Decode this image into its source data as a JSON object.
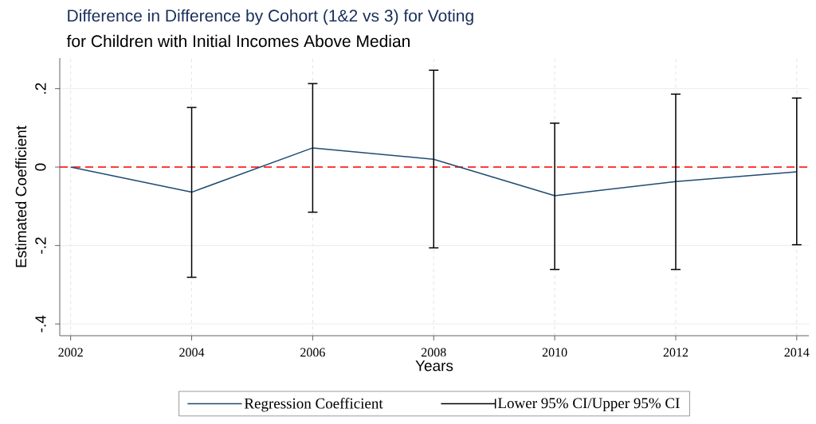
{
  "chart_data": {
    "type": "line",
    "title": "Difference in Difference by Cohort (1&2 vs 3) for Voting",
    "subtitle": "for Children with Initial Incomes Above Median",
    "xlabel": "Years",
    "ylabel": "Estimated Coefficient",
    "x": [
      2002,
      2004,
      2006,
      2008,
      2010,
      2012,
      2014
    ],
    "xlim": [
      2001.82,
      2014.2
    ],
    "xticks": [
      2002,
      2004,
      2006,
      2008,
      2010,
      2012,
      2014
    ],
    "ylim": [
      -0.43,
      0.278
    ],
    "yticks": [
      {
        "value": -0.4,
        "label": "-.4"
      },
      {
        "value": -0.2,
        "label": "-.2"
      },
      {
        "value": 0,
        "label": "0"
      },
      {
        "value": 0.2,
        "label": ".2"
      }
    ],
    "series": [
      {
        "name": "Regression Coefficient",
        "type": "line",
        "color": "#1f4a73",
        "values": [
          0,
          -0.064,
          0.049,
          0.02,
          -0.073,
          -0.037,
          -0.012
        ],
        "errors": [
          null,
          [
            -0.281,
            0.152
          ],
          [
            -0.115,
            0.213
          ],
          [
            -0.206,
            0.247
          ],
          [
            -0.261,
            0.112
          ],
          [
            -0.261,
            0.186
          ],
          [
            -0.198,
            0.176
          ]
        ]
      }
    ],
    "annotations": [
      "Lower 95% CI/Upper 95% CI"
    ],
    "ref_lines": [
      {
        "axis": "y",
        "value": 0,
        "color": "#ff0000",
        "line_style": "dashed"
      }
    ],
    "grid": true,
    "legend": "bottom",
    "marker": "none",
    "line_style": "solid"
  }
}
